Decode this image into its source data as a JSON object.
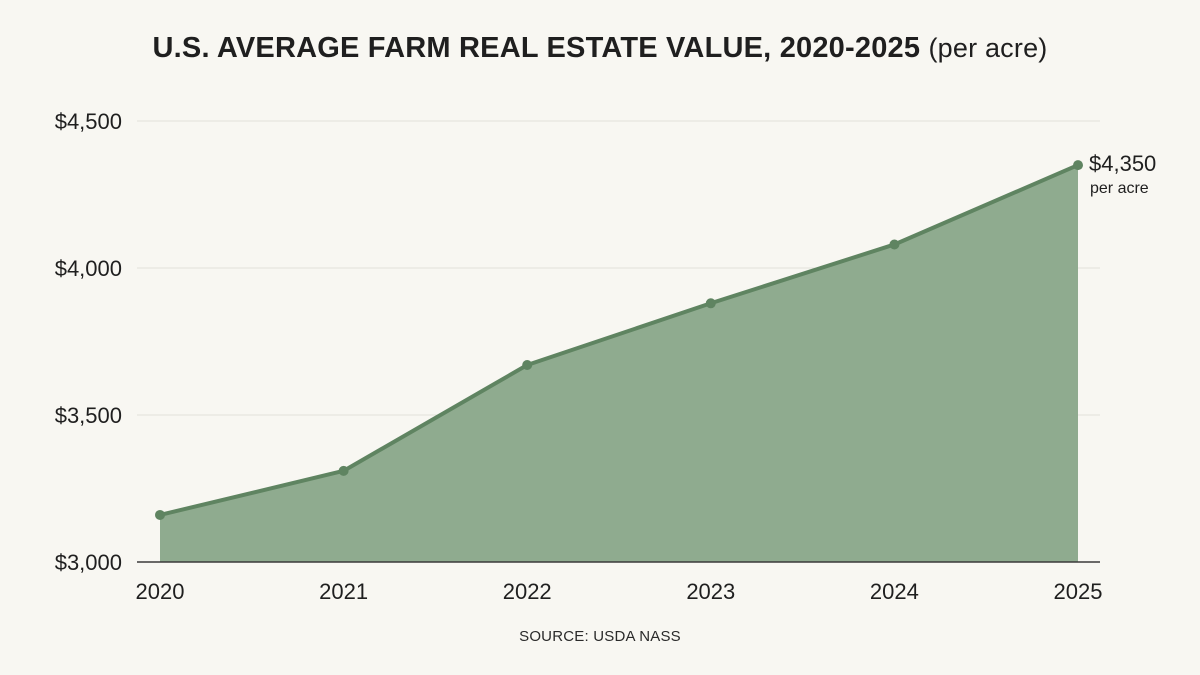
{
  "header": {
    "title": "U.S. AVERAGE FARM REAL ESTATE VALUE, 2020-2025",
    "subtitle": "(per acre)"
  },
  "footer": {
    "source": "SOURCE: USDA NASS"
  },
  "end_label": {
    "value": "$4,350",
    "unit": "per acre"
  },
  "colors": {
    "area_fill": "#8fab8f",
    "line": "#5f8461",
    "grid": "#e2e1da",
    "axis": "#3a3a3a",
    "background": "#f8f7f2"
  },
  "chart_data": {
    "type": "area",
    "x": [
      "2020",
      "2021",
      "2022",
      "2023",
      "2024",
      "2025"
    ],
    "series": [
      {
        "values": [
          3160,
          3310,
          3670,
          3880,
          4080,
          4350
        ]
      }
    ],
    "ylim": [
      3000,
      4500
    ],
    "yticks": [
      3000,
      3500,
      4000,
      4500
    ],
    "ytick_labels": [
      "$3,000",
      "$3,500",
      "$4,000",
      "$4,500"
    ],
    "grid": true,
    "markers": true
  }
}
